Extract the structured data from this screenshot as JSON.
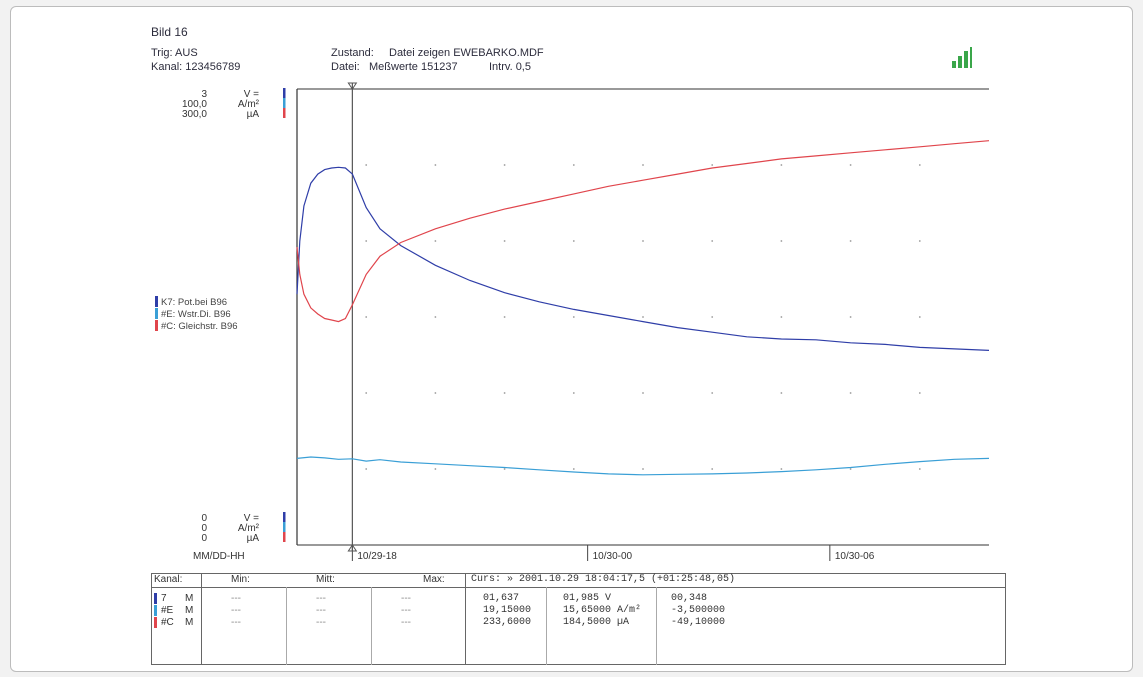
{
  "header": {
    "title": "Bild 16",
    "trig": "Trig: AUS",
    "kanal": "Kanal: 123456789",
    "zustand_label": "Zustand:",
    "zustand_value": "Datei zeigen EWEBARKO.MDF",
    "datei_label": "Datei:",
    "datei_value": "Meßwerte 151237",
    "intrv": "Intrv. 0,5"
  },
  "colors": {
    "potential": "#2f3ea8",
    "stromdichte": "#3a9fd6",
    "gleichstrom": "#e0454c",
    "signal_icon": "#3aa64a"
  },
  "icons": [
    "signal-strength-icon"
  ],
  "chart_data": {
    "type": "line",
    "xlabel": "MM/DD-HH",
    "x_ticks": [
      "10/29-18",
      "10/30-00",
      "10/30-06"
    ],
    "x_range": [
      0,
      100
    ],
    "x_tick_positions": [
      8,
      42,
      77
    ],
    "cursor_x": 8,
    "grid": "dotted",
    "legend_position": "left",
    "y_top_labels": [
      {
        "value": "3",
        "unit": "V ="
      },
      {
        "value": "100,0",
        "unit": "A/m²"
      },
      {
        "value": "300,0",
        "unit": "µA"
      }
    ],
    "y_bottom_labels": [
      {
        "value": "0",
        "unit": "V ="
      },
      {
        "value": "0",
        "unit": "A/m²"
      },
      {
        "value": "0",
        "unit": "µA"
      }
    ],
    "series": [
      {
        "name": "K7: Pot.bei B96",
        "color": "#2f3ea8",
        "unit": "V",
        "ylim": [
          0,
          3
        ],
        "x": [
          0,
          0.4,
          1,
          2,
          3,
          4,
          5,
          6,
          7,
          8,
          10,
          12,
          15,
          20,
          25,
          30,
          35,
          40,
          45,
          50,
          55,
          60,
          65,
          70,
          75,
          80,
          85,
          90,
          95,
          100
        ],
        "y": [
          1.65,
          2.0,
          2.23,
          2.38,
          2.44,
          2.47,
          2.48,
          2.485,
          2.48,
          2.44,
          2.22,
          2.08,
          1.97,
          1.84,
          1.74,
          1.66,
          1.6,
          1.55,
          1.51,
          1.47,
          1.43,
          1.4,
          1.37,
          1.355,
          1.35,
          1.33,
          1.32,
          1.3,
          1.29,
          1.28
        ]
      },
      {
        "name": "#E: Wstr.Di. B96",
        "color": "#3a9fd6",
        "unit": "A/m²",
        "ylim": [
          0,
          100
        ],
        "x": [
          0,
          2,
          4,
          6,
          8,
          10,
          12,
          15,
          20,
          25,
          30,
          35,
          40,
          45,
          50,
          55,
          60,
          65,
          70,
          75,
          80,
          85,
          90,
          95,
          100
        ],
        "y": [
          19.0,
          19.3,
          19.1,
          18.8,
          18.9,
          18.4,
          18.7,
          18.2,
          17.8,
          17.4,
          17.0,
          16.5,
          16.0,
          15.6,
          15.4,
          15.5,
          15.6,
          15.8,
          16.1,
          16.5,
          17.0,
          17.7,
          18.3,
          18.8,
          19.0
        ]
      },
      {
        "name": "#C: Gleichstr. B96",
        "color": "#e0454c",
        "unit": "µA",
        "ylim": [
          0,
          300
        ],
        "x": [
          0,
          0.4,
          1,
          2,
          3,
          4,
          5,
          6,
          7,
          8,
          10,
          12,
          15,
          20,
          25,
          30,
          35,
          40,
          45,
          50,
          55,
          60,
          65,
          70,
          75,
          80,
          85,
          90,
          95,
          100
        ],
        "y": [
          196,
          178,
          165,
          156,
          152,
          149,
          148,
          147,
          149,
          158,
          178,
          190,
          199,
          208,
          215,
          221,
          226,
          231,
          236,
          240,
          244,
          248,
          251,
          254,
          256,
          258,
          260,
          262,
          264,
          266
        ]
      }
    ]
  },
  "table": {
    "headers": {
      "kanal": "Kanal:",
      "min": "Min:",
      "mitt": "Mitt:",
      "max": "Max:"
    },
    "cursor": "Curs: » 2001.10.29 18:04:17,5 (+01:25:48,05)",
    "rows": [
      {
        "channel": "7",
        "mode": "M",
        "color": "#2f3ea8",
        "min": "---",
        "mitt": "---",
        "max": "---",
        "c1": "01,637",
        "c2": "01,985  V",
        "c3": "00,348"
      },
      {
        "channel": "#E",
        "mode": "M",
        "color": "#3a9fd6",
        "min": "---",
        "mitt": "---",
        "max": "---",
        "c1": "19,15000",
        "c2": "15,65000 A/m²",
        "c3": "-3,500000"
      },
      {
        "channel": "#C",
        "mode": "M",
        "color": "#e0454c",
        "min": "---",
        "mitt": "---",
        "max": "---",
        "c1": "233,6000",
        "c2": "184,5000 µA",
        "c3": "-49,10000"
      }
    ]
  }
}
